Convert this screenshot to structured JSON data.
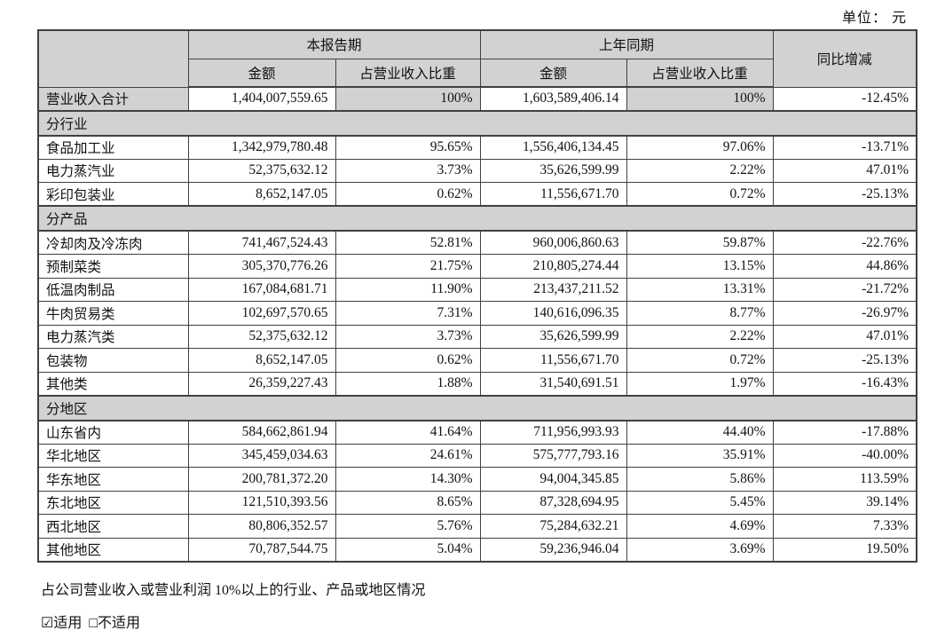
{
  "unit_label": "单位： 元",
  "colors": {
    "cell_gray": "#d2d2d2",
    "border": "#404040"
  },
  "table": {
    "headers": {
      "current_period": "本报告期",
      "prior_period": "上年同期",
      "yoy_change": "同比增减",
      "amount": "金额",
      "pct_of_revenue": "占营业收入比重"
    },
    "total_row": {
      "cells": [
        "营业收入合计",
        "1,404,007,559.65",
        "100%",
        "1,603,589,406.14",
        "100%",
        "-12.45%"
      ]
    },
    "sections": [
      {
        "title": "分行业",
        "rows": [
          {
            "cells": [
              "食品加工业",
              "1,342,979,780.48",
              "95.65%",
              "1,556,406,134.45",
              "97.06%",
              "-13.71%"
            ]
          },
          {
            "cells": [
              "电力蒸汽业",
              "52,375,632.12",
              "3.73%",
              "35,626,599.99",
              "2.22%",
              "47.01%"
            ]
          },
          {
            "cells": [
              "彩印包装业",
              "8,652,147.05",
              "0.62%",
              "11,556,671.70",
              "0.72%",
              "-25.13%"
            ]
          }
        ]
      },
      {
        "title": "分产品",
        "rows": [
          {
            "cells": [
              "冷却肉及冷冻肉",
              "741,467,524.43",
              "52.81%",
              "960,006,860.63",
              "59.87%",
              "-22.76%"
            ]
          },
          {
            "cells": [
              "预制菜类",
              "305,370,776.26",
              "21.75%",
              "210,805,274.44",
              "13.15%",
              "44.86%"
            ]
          },
          {
            "cells": [
              "低温肉制品",
              "167,084,681.71",
              "11.90%",
              "213,437,211.52",
              "13.31%",
              "-21.72%"
            ]
          },
          {
            "cells": [
              "牛肉贸易类",
              "102,697,570.65",
              "7.31%",
              "140,616,096.35",
              "8.77%",
              "-26.97%"
            ]
          },
          {
            "cells": [
              "电力蒸汽类",
              "52,375,632.12",
              "3.73%",
              "35,626,599.99",
              "2.22%",
              "47.01%"
            ]
          },
          {
            "cells": [
              "包装物",
              "8,652,147.05",
              "0.62%",
              "11,556,671.70",
              "0.72%",
              "-25.13%"
            ]
          },
          {
            "cells": [
              "其他类",
              "26,359,227.43",
              "1.88%",
              "31,540,691.51",
              "1.97%",
              "-16.43%"
            ]
          }
        ]
      },
      {
        "title": "分地区",
        "rows": [
          {
            "cells": [
              "山东省内",
              "584,662,861.94",
              "41.64%",
              "711,956,993.93",
              "44.40%",
              "-17.88%"
            ]
          },
          {
            "cells": [
              "华北地区",
              "345,459,034.63",
              "24.61%",
              "575,777,793.16",
              "35.91%",
              "-40.00%"
            ]
          },
          {
            "cells": [
              "华东地区",
              "200,781,372.20",
              "14.30%",
              "94,004,345.85",
              "5.86%",
              "113.59%"
            ]
          },
          {
            "cells": [
              "东北地区",
              "121,510,393.56",
              "8.65%",
              "87,328,694.95",
              "5.45%",
              "39.14%"
            ]
          },
          {
            "cells": [
              "西北地区",
              "80,806,352.57",
              "5.76%",
              "75,284,632.21",
              "4.69%",
              "7.33%"
            ]
          },
          {
            "cells": [
              "其他地区",
              "70,787,544.75",
              "5.04%",
              "59,236,946.04",
              "3.69%",
              "19.50%"
            ]
          }
        ]
      }
    ]
  },
  "footer": {
    "note": "占公司营业收入或营业利润 10%以上的行业、产品或地区情况",
    "checked_symbol": "☑",
    "applicable_label": "适用",
    "unchecked_symbol": "□",
    "not_applicable_label": "不适用"
  }
}
